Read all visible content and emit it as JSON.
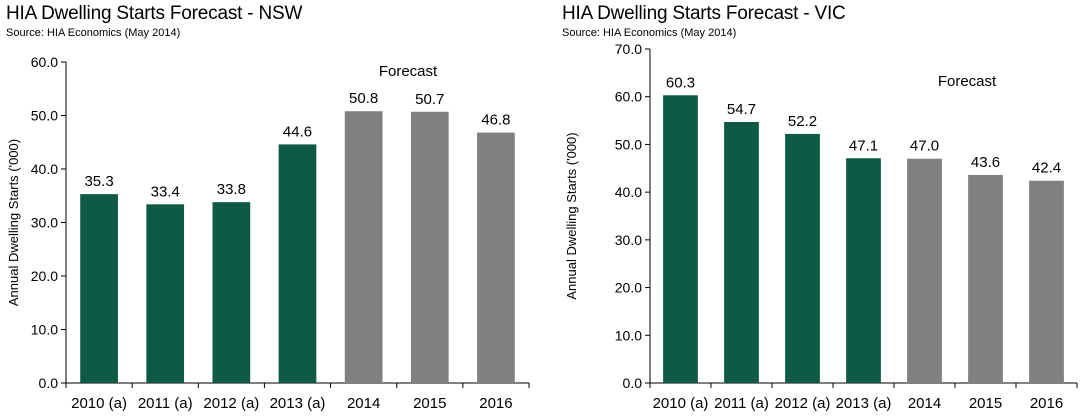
{
  "chart_data": [
    {
      "type": "bar",
      "title": "HIA Dwelling Starts Forecast - NSW",
      "source": "Source: HIA Economics (May 2014)",
      "ylabel": "Annual Dwelling Starts ('000)",
      "xlabel": "",
      "ylim": [
        0,
        60
      ],
      "yticks": [
        "0.0",
        "10.0",
        "20.0",
        "30.0",
        "40.0",
        "50.0",
        "60.0"
      ],
      "categories": [
        "2010 (a)",
        "2011 (a)",
        "2012 (a)",
        "2013 (a)",
        "2014",
        "2015",
        "2016"
      ],
      "values": [
        35.3,
        33.4,
        33.8,
        44.6,
        50.8,
        50.7,
        46.8
      ],
      "value_labels": [
        "35.3",
        "33.4",
        "33.8",
        "44.6",
        "50.8",
        "50.7",
        "46.8"
      ],
      "forecast_flags": [
        false,
        false,
        false,
        false,
        true,
        true,
        true
      ],
      "annotation": "Forecast",
      "grid": false,
      "colors": {
        "actual": "#0e5a44",
        "forecast": "#808080"
      }
    },
    {
      "type": "bar",
      "title": "HIA Dwelling Starts Forecast - VIC",
      "source": "Source: HIA Economics (May 2014)",
      "ylabel": "Annual Dwelling Starts ('000)",
      "xlabel": "",
      "ylim": [
        0,
        70
      ],
      "yticks": [
        "0.0",
        "10.0",
        "20.0",
        "30.0",
        "40.0",
        "50.0",
        "60.0",
        "70.0"
      ],
      "categories": [
        "2010 (a)",
        "2011 (a)",
        "2012 (a)",
        "2013 (a)",
        "2014",
        "2015",
        "2016"
      ],
      "values": [
        60.3,
        54.7,
        52.2,
        47.1,
        47.0,
        43.6,
        42.4
      ],
      "value_labels": [
        "60.3",
        "54.7",
        "52.2",
        "47.1",
        "47.0",
        "43.6",
        "42.4"
      ],
      "forecast_flags": [
        false,
        false,
        false,
        false,
        true,
        true,
        true
      ],
      "annotation": "Forecast",
      "grid": false,
      "colors": {
        "actual": "#0e5a44",
        "forecast": "#808080"
      }
    }
  ]
}
